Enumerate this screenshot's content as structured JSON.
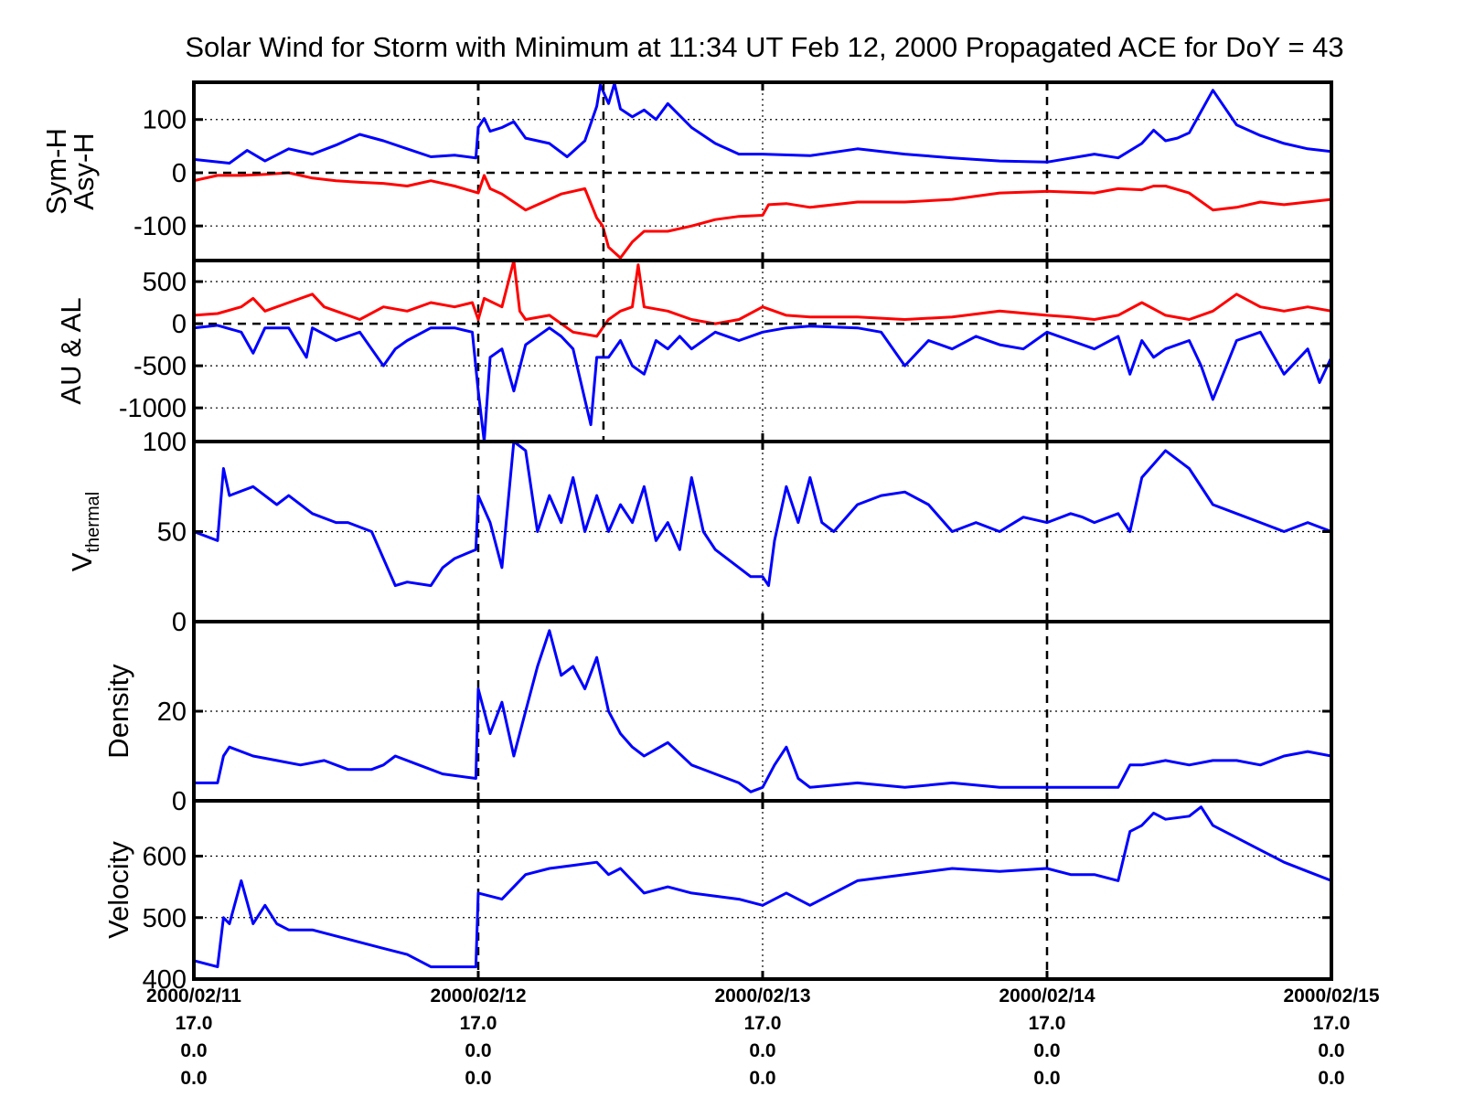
{
  "title": "Solar Wind for Storm with Minimum at 11:34 UT Feb 12, 2000  Propagated ACE for DoY = 43",
  "colors": {
    "blue": "#0000ff",
    "red": "#ff0000",
    "axis": "#000000",
    "background": "#ffffff"
  },
  "x_axis": {
    "range_hours": [
      0,
      96
    ],
    "minimum_marker_hours": 34.567,
    "tick_hours": [
      0,
      24,
      48,
      72,
      96
    ],
    "tick_labels": [
      [
        "2000/02/11",
        "17.0",
        "0.0",
        "0.0"
      ],
      [
        "2000/02/12",
        "17.0",
        "0.0",
        "0.0"
      ],
      [
        "2000/02/13",
        "17.0",
        "0.0",
        "0.0"
      ],
      [
        "2000/02/14",
        "17.0",
        "0.0",
        "0.0"
      ],
      [
        "2000/02/15",
        "17.0",
        "0.0",
        "0.0"
      ]
    ]
  },
  "chart_data": [
    {
      "type": "line",
      "id": "symh",
      "ylabel_lines": [
        "Sym-H",
        "Asy-H"
      ],
      "ylim": [
        -165,
        170
      ],
      "yticks": [
        -100,
        0,
        100
      ],
      "ytick_labels": [
        "-100",
        "0",
        "100"
      ],
      "zero_line": true,
      "grid": true,
      "series": [
        {
          "color": "#0000ff",
          "x": [
            0,
            3,
            4.5,
            6,
            8,
            10,
            12,
            14,
            16,
            18,
            20,
            22,
            23.8,
            24,
            24.5,
            25,
            26,
            27,
            28,
            30,
            31.5,
            33,
            34,
            34.3,
            35,
            35.5,
            36,
            37,
            38,
            39,
            40,
            42,
            44,
            46,
            48,
            52,
            56,
            60,
            64,
            68,
            72,
            76,
            78,
            80,
            81,
            82,
            83,
            84,
            86,
            88,
            90,
            92,
            94,
            96
          ],
          "y": [
            25,
            18,
            42,
            22,
            45,
            35,
            52,
            72,
            60,
            45,
            30,
            33,
            28,
            85,
            102,
            78,
            85,
            96,
            65,
            55,
            30,
            60,
            125,
            165,
            130,
            168,
            120,
            105,
            118,
            100,
            130,
            85,
            55,
            35,
            35,
            32,
            45,
            35,
            28,
            22,
            20,
            35,
            28,
            55,
            80,
            60,
            65,
            75,
            155,
            90,
            70,
            55,
            45,
            40
          ]
        },
        {
          "color": "#ff0000",
          "x": [
            0,
            2,
            4,
            6,
            8,
            10,
            12,
            14,
            16,
            18,
            20,
            22,
            24,
            24.5,
            25,
            26,
            28,
            30,
            31,
            32,
            33,
            34,
            34.5,
            35,
            36,
            37,
            38,
            40,
            42,
            44,
            46,
            48,
            48.5,
            50,
            52,
            56,
            60,
            64,
            68,
            72,
            76,
            78,
            80,
            81,
            82,
            84,
            86,
            88,
            90,
            92,
            94,
            96
          ],
          "y": [
            -15,
            -5,
            -5,
            -3,
            0,
            -10,
            -15,
            -18,
            -20,
            -25,
            -15,
            -25,
            -38,
            -5,
            -30,
            -40,
            -70,
            -50,
            -40,
            -35,
            -30,
            -85,
            -100,
            -140,
            -160,
            -130,
            -110,
            -110,
            -100,
            -88,
            -82,
            -80,
            -60,
            -58,
            -65,
            -55,
            -55,
            -50,
            -38,
            -35,
            -38,
            -30,
            -32,
            -25,
            -25,
            -38,
            -70,
            -65,
            -55,
            -60,
            -55,
            -50
          ]
        }
      ]
    },
    {
      "type": "line",
      "id": "aual",
      "ylabel_lines": [
        "AU & AL"
      ],
      "ylim": [
        -1400,
        750
      ],
      "yticks": [
        -1000,
        -500,
        0,
        500
      ],
      "ytick_labels": [
        "-1000",
        "-500",
        "0",
        "500"
      ],
      "zero_line": true,
      "grid": true,
      "series": [
        {
          "color": "#ff0000",
          "x": [
            0,
            2,
            4,
            5,
            6,
            8,
            10,
            11,
            12,
            14,
            16,
            18,
            20,
            22,
            23.5,
            24,
            24.5,
            26,
            27,
            27.5,
            28,
            30,
            32,
            34,
            35,
            36,
            37,
            37.5,
            38,
            40,
            42,
            44,
            46,
            48,
            50,
            52,
            56,
            60,
            64,
            68,
            72,
            74,
            76,
            78,
            80,
            82,
            84,
            86,
            88,
            90,
            92,
            94,
            96
          ],
          "y": [
            100,
            120,
            200,
            300,
            150,
            250,
            350,
            200,
            150,
            50,
            200,
            150,
            250,
            200,
            250,
            50,
            300,
            200,
            750,
            150,
            50,
            100,
            -100,
            -150,
            50,
            150,
            200,
            700,
            200,
            150,
            50,
            0,
            50,
            200,
            100,
            80,
            80,
            50,
            80,
            150,
            100,
            80,
            50,
            100,
            250,
            100,
            50,
            150,
            350,
            200,
            150,
            200,
            150
          ]
        },
        {
          "color": "#0000ff",
          "x": [
            0,
            2,
            4,
            5,
            6,
            8,
            9.5,
            10,
            12,
            14,
            16,
            17,
            18,
            20,
            22,
            23.5,
            24,
            24.5,
            25,
            26,
            27,
            28,
            30,
            31,
            32,
            33,
            33.5,
            34,
            35,
            36,
            37,
            38,
            39,
            40,
            41,
            42,
            44,
            46,
            48,
            50,
            52,
            56,
            58,
            60,
            62,
            64,
            66,
            68,
            70,
            72,
            74,
            76,
            78,
            79,
            80,
            81,
            82,
            84,
            85,
            86,
            88,
            90,
            92,
            94,
            95,
            96
          ],
          "y": [
            -50,
            -20,
            -100,
            -350,
            -50,
            -50,
            -400,
            -50,
            -200,
            -100,
            -500,
            -300,
            -200,
            -50,
            -50,
            -100,
            -800,
            -1400,
            -400,
            -300,
            -800,
            -250,
            -50,
            -150,
            -300,
            -900,
            -1200,
            -400,
            -400,
            -200,
            -500,
            -600,
            -200,
            -300,
            -150,
            -300,
            -100,
            -200,
            -100,
            -50,
            -30,
            -50,
            -100,
            -500,
            -200,
            -300,
            -150,
            -250,
            -300,
            -100,
            -200,
            -300,
            -150,
            -600,
            -200,
            -400,
            -300,
            -200,
            -500,
            -900,
            -200,
            -100,
            -600,
            -300,
            -700,
            -400
          ]
        }
      ]
    },
    {
      "type": "line",
      "id": "vthermal",
      "ylabel": "V",
      "ylabel_sub": "thermal",
      "ylim": [
        0,
        100
      ],
      "yticks": [
        0,
        50,
        100
      ],
      "ytick_labels": [
        "0",
        "50",
        "100"
      ],
      "zero_line": false,
      "grid": true,
      "series": [
        {
          "color": "#0000ff",
          "x": [
            0,
            2,
            2.5,
            3,
            5,
            7,
            8,
            10,
            12,
            13,
            15,
            16,
            17,
            18,
            20,
            21,
            22,
            23.8,
            24,
            25,
            26,
            27,
            28,
            29,
            30,
            31,
            32,
            33,
            34,
            35,
            36,
            37,
            38,
            39,
            40,
            41,
            42,
            43,
            44,
            46,
            47,
            48,
            48.5,
            49,
            50,
            51,
            52,
            53,
            54,
            56,
            58,
            60,
            62,
            64,
            66,
            68,
            70,
            72,
            74,
            75,
            76,
            78,
            79,
            80,
            82,
            84,
            86,
            88,
            90,
            92,
            94,
            96
          ],
          "y": [
            50,
            45,
            85,
            70,
            75,
            65,
            70,
            60,
            55,
            55,
            50,
            35,
            20,
            22,
            20,
            30,
            35,
            40,
            70,
            55,
            30,
            100,
            95,
            50,
            70,
            55,
            80,
            50,
            70,
            50,
            65,
            55,
            75,
            45,
            55,
            40,
            80,
            50,
            40,
            30,
            25,
            25,
            20,
            45,
            75,
            55,
            80,
            55,
            50,
            65,
            70,
            72,
            65,
            50,
            55,
            50,
            58,
            55,
            60,
            58,
            55,
            60,
            50,
            80,
            95,
            85,
            65,
            60,
            55,
            50,
            55,
            50
          ]
        }
      ]
    },
    {
      "type": "line",
      "id": "density",
      "ylabel": "Density",
      "ylim": [
        0,
        40
      ],
      "yticks": [
        0,
        20
      ],
      "ytick_labels": [
        "0",
        "20"
      ],
      "zero_line": false,
      "grid": true,
      "series": [
        {
          "color": "#0000ff",
          "x": [
            0,
            2,
            2.5,
            3,
            5,
            7,
            9,
            11,
            13,
            15,
            16,
            17,
            19,
            21,
            23.8,
            24,
            25,
            26,
            27,
            28,
            29,
            30,
            31,
            32,
            33,
            34,
            35,
            36,
            37,
            38,
            40,
            42,
            44,
            46,
            47,
            48,
            49,
            50,
            51,
            52,
            56,
            60,
            64,
            68,
            72,
            74,
            76,
            78,
            79,
            80,
            82,
            84,
            86,
            88,
            90,
            92,
            94,
            96
          ],
          "y": [
            4,
            4,
            10,
            12,
            10,
            9,
            8,
            9,
            7,
            7,
            8,
            10,
            8,
            6,
            5,
            25,
            15,
            22,
            10,
            20,
            30,
            38,
            28,
            30,
            25,
            32,
            20,
            15,
            12,
            10,
            13,
            8,
            6,
            4,
            2,
            3,
            8,
            12,
            5,
            3,
            4,
            3,
            4,
            3,
            3,
            3,
            3,
            3,
            8,
            8,
            9,
            8,
            9,
            9,
            8,
            10,
            11,
            10
          ]
        }
      ]
    },
    {
      "type": "line",
      "id": "velocity",
      "ylabel": "Velocity",
      "ylim": [
        400,
        690
      ],
      "yticks": [
        400,
        500,
        600
      ],
      "ytick_labels": [
        "400",
        "500",
        "600"
      ],
      "zero_line": false,
      "grid": true,
      "series": [
        {
          "color": "#0000ff",
          "x": [
            0,
            2,
            2.5,
            3,
            4,
            5,
            6,
            7,
            8,
            10,
            12,
            14,
            16,
            18,
            20,
            22,
            23.8,
            24,
            26,
            28,
            30,
            32,
            34,
            35,
            36,
            38,
            40,
            42,
            44,
            46,
            48,
            50,
            52,
            56,
            60,
            64,
            68,
            72,
            74,
            76,
            78,
            79,
            80,
            81,
            82,
            84,
            85,
            86,
            88,
            90,
            92,
            94,
            96
          ],
          "y": [
            430,
            420,
            500,
            490,
            560,
            490,
            520,
            490,
            480,
            480,
            470,
            460,
            450,
            440,
            420,
            420,
            420,
            540,
            530,
            570,
            580,
            585,
            590,
            570,
            580,
            540,
            550,
            540,
            535,
            530,
            520,
            540,
            520,
            560,
            570,
            580,
            575,
            580,
            570,
            570,
            560,
            640,
            650,
            670,
            660,
            665,
            680,
            650,
            630,
            610,
            590,
            575,
            560
          ]
        }
      ]
    }
  ]
}
